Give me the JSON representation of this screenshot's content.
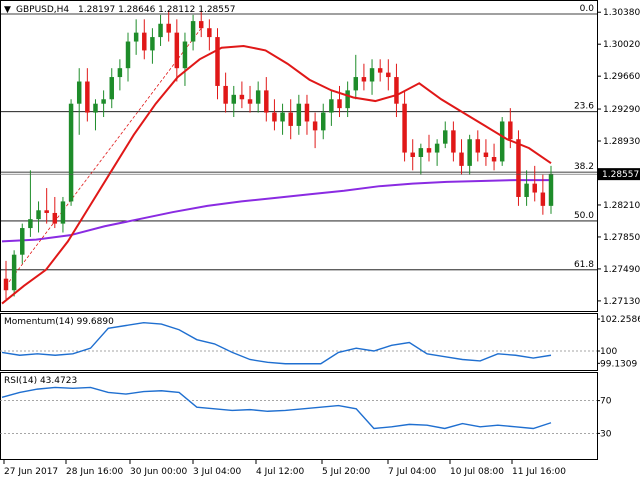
{
  "header": {
    "symbol": "GBPUSD,H4",
    "ohlc": "1.28197 1.28646 1.28112 1.28557"
  },
  "colors": {
    "bull": "#1e8c2a",
    "bear": "#e01818",
    "sma_fast": "#e01818",
    "sma_slow": "#8a2be2",
    "oscillator": "#1f6fd0",
    "fib_line": "#000000",
    "trendline": "#e01818"
  },
  "chart_data": [
    {
      "type": "candlestick",
      "title": "GBPUSD,H4",
      "ylim": [
        1.2705,
        1.3045
      ],
      "y_ticks": [
        "1.30380",
        "1.30020",
        "1.29660",
        "1.29290",
        "1.28930",
        "1.28210",
        "1.27850",
        "1.27490",
        "1.27130"
      ],
      "current_price_label": "1.28557",
      "current_price": 1.28557,
      "x_tick_labels": [
        "27 Jun 2017",
        "28 Jun 16:00",
        "30 Jun 00:00",
        "3 Jul 04:00",
        "4 Jul 12:00",
        "5 Jul 20:00",
        "7 Jul 04:00",
        "10 Jul 08:00",
        "11 Jul 16:00"
      ],
      "fibonacci": [
        {
          "label": "0.0",
          "price": 1.3036
        },
        {
          "label": "23.6",
          "price": 1.2926
        },
        {
          "label": "38.2",
          "price": 1.2858
        },
        {
          "label": "50.0",
          "price": 1.2803
        },
        {
          "label": "61.8",
          "price": 1.2748
        }
      ],
      "candles": [
        [
          1.2738,
          1.2758,
          1.2715,
          1.2725
        ],
        [
          1.2725,
          1.277,
          1.2718,
          1.2765
        ],
        [
          1.2765,
          1.28,
          1.2755,
          1.2795
        ],
        [
          1.2795,
          1.286,
          1.2785,
          1.2805
        ],
        [
          1.2805,
          1.2825,
          1.279,
          1.2815
        ],
        [
          1.2815,
          1.284,
          1.28,
          1.2812
        ],
        [
          1.2812,
          1.283,
          1.2795,
          1.28
        ],
        [
          1.28,
          1.283,
          1.279,
          1.2825
        ],
        [
          1.2825,
          1.294,
          1.282,
          1.2935
        ],
        [
          1.2935,
          1.2975,
          1.29,
          1.296
        ],
        [
          1.296,
          1.2975,
          1.2915,
          1.2925
        ],
        [
          1.2925,
          1.294,
          1.2905,
          1.2935
        ],
        [
          1.2935,
          1.295,
          1.292,
          1.294
        ],
        [
          1.294,
          1.2975,
          1.293,
          1.2965
        ],
        [
          1.2965,
          1.2985,
          1.295,
          1.2975
        ],
        [
          1.2975,
          1.3015,
          1.296,
          1.3005
        ],
        [
          1.3005,
          1.303,
          1.299,
          1.3015
        ],
        [
          1.3015,
          1.303,
          1.2985,
          1.2995
        ],
        [
          1.2995,
          1.302,
          1.298,
          1.301
        ],
        [
          1.301,
          1.3035,
          1.3,
          1.3025
        ],
        [
          1.3025,
          1.304,
          1.3005,
          1.3015
        ],
        [
          1.3015,
          1.303,
          1.296,
          1.2975
        ],
        [
          1.2975,
          1.3015,
          1.2955,
          1.3005
        ],
        [
          1.3005,
          1.3035,
          1.2995,
          1.3028
        ],
        [
          1.3028,
          1.304,
          1.301,
          1.302
        ],
        [
          1.302,
          1.303,
          1.2995,
          1.301
        ],
        [
          1.301,
          1.302,
          1.294,
          1.2955
        ],
        [
          1.2955,
          1.297,
          1.2925,
          1.2935
        ],
        [
          1.2935,
          1.2955,
          1.292,
          1.2945
        ],
        [
          1.2945,
          1.296,
          1.293,
          1.294
        ],
        [
          1.294,
          1.2955,
          1.2925,
          1.2935
        ],
        [
          1.2935,
          1.296,
          1.2925,
          1.295
        ],
        [
          1.295,
          1.2965,
          1.2915,
          1.2925
        ],
        [
          1.2925,
          1.294,
          1.2905,
          1.2915
        ],
        [
          1.2915,
          1.2935,
          1.29,
          1.2925
        ],
        [
          1.2925,
          1.294,
          1.2895,
          1.291
        ],
        [
          1.291,
          1.2945,
          1.29,
          1.2935
        ],
        [
          1.2935,
          1.2945,
          1.29,
          1.2915
        ],
        [
          1.2915,
          1.2925,
          1.2885,
          1.2905
        ],
        [
          1.2905,
          1.2935,
          1.2895,
          1.2925
        ],
        [
          1.2925,
          1.295,
          1.291,
          1.294
        ],
        [
          1.294,
          1.2955,
          1.292,
          1.293
        ],
        [
          1.293,
          1.296,
          1.292,
          1.295
        ],
        [
          1.295,
          1.299,
          1.294,
          1.2965
        ],
        [
          1.2965,
          1.298,
          1.295,
          1.296
        ],
        [
          1.296,
          1.2985,
          1.2945,
          1.2975
        ],
        [
          1.2975,
          1.2985,
          1.296,
          1.297
        ],
        [
          1.297,
          1.2985,
          1.295,
          1.2965
        ],
        [
          1.2965,
          1.298,
          1.292,
          1.2935
        ],
        [
          1.2935,
          1.295,
          1.287,
          1.288
        ],
        [
          1.288,
          1.2895,
          1.286,
          1.2875
        ],
        [
          1.2875,
          1.289,
          1.2855,
          1.2885
        ],
        [
          1.2885,
          1.29,
          1.287,
          1.288
        ],
        [
          1.288,
          1.2895,
          1.2865,
          1.289
        ],
        [
          1.289,
          1.2915,
          1.2885,
          1.2905
        ],
        [
          1.2905,
          1.2915,
          1.287,
          1.288
        ],
        [
          1.288,
          1.2895,
          1.2855,
          1.2865
        ],
        [
          1.2865,
          1.29,
          1.2855,
          1.2895
        ],
        [
          1.2895,
          1.2905,
          1.287,
          1.288
        ],
        [
          1.288,
          1.2895,
          1.2865,
          1.2875
        ],
        [
          1.2875,
          1.289,
          1.286,
          1.287
        ],
        [
          1.287,
          1.292,
          1.2865,
          1.2915
        ],
        [
          1.2915,
          1.293,
          1.2885,
          1.2895
        ],
        [
          1.2895,
          1.2905,
          1.282,
          1.283
        ],
        [
          1.283,
          1.286,
          1.282,
          1.2845
        ],
        [
          1.2845,
          1.2865,
          1.2825,
          1.2835
        ],
        [
          1.2835,
          1.2855,
          1.281,
          1.282
        ],
        [
          1.282,
          1.2865,
          1.2811,
          1.2856
        ]
      ],
      "sma_fast": [
        1.271,
        1.273,
        1.2748,
        1.278,
        1.282,
        1.286,
        1.29,
        1.2935,
        1.2965,
        1.2985,
        1.2998,
        1.3,
        1.2995,
        1.298,
        1.2962,
        1.295,
        1.2942,
        1.2938,
        1.2945,
        1.2958,
        1.294,
        1.2925,
        1.291,
        1.2895,
        1.2885,
        1.2868
      ],
      "sma_slow": [
        1.278,
        1.2782,
        1.2787,
        1.2797,
        1.2805,
        1.2813,
        1.282,
        1.2825,
        1.2829,
        1.2833,
        1.2837,
        1.2842,
        1.2845,
        1.2847,
        1.2848,
        1.2849,
        1.2849
      ],
      "trendline": [
        [
          0,
          1.273
        ],
        [
          24,
          1.302
        ]
      ]
    },
    {
      "type": "line",
      "title": "Momentum(14) 99.6890",
      "ylim": [
        98.8,
        102.4
      ],
      "y_ticks": [
        "102.2586",
        "100",
        "99.1309"
      ],
      "reference_level": 100,
      "values": [
        99.9,
        99.7,
        99.8,
        99.7,
        99.8,
        100.2,
        101.6,
        101.8,
        102.0,
        101.9,
        101.5,
        100.8,
        100.5,
        99.9,
        99.4,
        99.2,
        99.1,
        99.1,
        99.1,
        99.9,
        100.2,
        100.0,
        100.4,
        100.6,
        99.8,
        99.6,
        99.4,
        99.3,
        99.8,
        99.7,
        99.5,
        99.7
      ]
    },
    {
      "type": "line",
      "title": "RSI(14) 43.4723",
      "ylim": [
        0,
        100
      ],
      "y_ticks": [
        "70",
        "30"
      ],
      "reference_levels": [
        70,
        30
      ],
      "values": [
        74,
        80,
        84,
        86,
        85,
        86,
        80,
        78,
        81,
        82,
        80,
        62,
        60,
        58,
        59,
        57,
        58,
        60,
        62,
        64,
        60,
        36,
        38,
        41,
        40,
        36,
        42,
        38,
        40,
        38,
        36,
        43
      ]
    }
  ]
}
